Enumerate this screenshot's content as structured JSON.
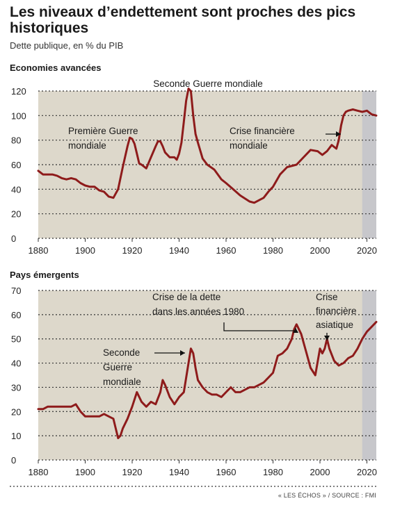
{
  "header": {
    "title": "Les niveaux d’endettement sont proches des pics historiques",
    "subtitle": "Dette publique, en % du PIB"
  },
  "footer": {
    "source": "« LES ÉCHOS » / SOURCE : FMI"
  },
  "colors": {
    "line": "#8e1b1b",
    "plot_bg": "#ddd8cb",
    "shade": "#c7c7cb"
  },
  "chart_data": [
    {
      "type": "line",
      "title": "Economies avancées",
      "xlim": [
        1880,
        2024
      ],
      "ylim": [
        0,
        120
      ],
      "xticks": [
        1880,
        1900,
        1920,
        1940,
        1960,
        1980,
        2000,
        2020
      ],
      "yticks": [
        0,
        20,
        40,
        60,
        80,
        100,
        120
      ],
      "grid": true,
      "shaded_from": 2018,
      "series": [
        {
          "x": [
            1880,
            1882,
            1884,
            1886,
            1888,
            1890,
            1892,
            1894,
            1896,
            1898,
            1900,
            1902,
            1904,
            1906,
            1908,
            1910,
            1912,
            1914,
            1916,
            1918,
            1919,
            1920,
            1921,
            1922,
            1923,
            1924,
            1926,
            1928,
            1930,
            1931,
            1932,
            1933,
            1934,
            1936,
            1938,
            1939,
            1940,
            1941,
            1942,
            1943,
            1944,
            1945,
            1946,
            1947,
            1948,
            1950,
            1952,
            1955,
            1958,
            1960,
            1963,
            1966,
            1970,
            1972,
            1974,
            1976,
            1978,
            1980,
            1983,
            1986,
            1990,
            1993,
            1996,
            1999,
            2001,
            2003,
            2005,
            2007,
            2008,
            2009,
            2010,
            2011,
            2012,
            2014,
            2016,
            2018,
            2020,
            2022,
            2024
          ],
          "y": [
            55,
            52,
            52,
            52,
            51,
            49,
            48,
            49,
            48,
            45,
            43,
            42,
            42,
            39,
            38,
            34,
            33,
            40,
            58,
            75,
            82,
            81,
            77,
            69,
            61,
            60,
            57,
            66,
            75,
            79,
            79,
            75,
            70,
            66,
            66,
            64,
            69,
            78,
            95,
            112,
            122,
            120,
            100,
            85,
            78,
            65,
            60,
            56,
            48,
            45,
            40,
            35,
            30,
            29,
            31,
            33,
            38,
            42,
            52,
            58,
            60,
            66,
            72,
            71,
            68,
            71,
            76,
            73,
            80,
            92,
            100,
            103,
            104,
            105,
            104,
            103,
            104,
            101,
            100
          ]
        }
      ],
      "annotations": [
        {
          "text": [
            "Seconde Guerre mondiale"
          ]
        },
        {
          "text": [
            "Première Guerre",
            "mondiale"
          ]
        },
        {
          "text": [
            "Crise financière",
            "mondiale"
          ]
        }
      ]
    },
    {
      "type": "line",
      "title": "Pays émergents",
      "xlim": [
        1880,
        2024
      ],
      "ylim": [
        0,
        70
      ],
      "xticks": [
        1880,
        1900,
        1920,
        1940,
        1960,
        1980,
        2000,
        2020
      ],
      "yticks": [
        0,
        10,
        20,
        30,
        40,
        50,
        60,
        70
      ],
      "grid": true,
      "shaded_from": 2018,
      "series": [
        {
          "x": [
            1880,
            1882,
            1884,
            1886,
            1888,
            1890,
            1892,
            1894,
            1896,
            1898,
            1900,
            1902,
            1904,
            1906,
            1908,
            1910,
            1912,
            1913,
            1914,
            1915,
            1916,
            1918,
            1920,
            1922,
            1924,
            1926,
            1928,
            1930,
            1932,
            1933,
            1934,
            1936,
            1938,
            1940,
            1942,
            1944,
            1945,
            1946,
            1947,
            1948,
            1950,
            1952,
            1954,
            1956,
            1958,
            1960,
            1962,
            1964,
            1966,
            1968,
            1970,
            1972,
            1974,
            1976,
            1978,
            1980,
            1982,
            1984,
            1986,
            1988,
            1989,
            1990,
            1992,
            1994,
            1996,
            1998,
            2000,
            2001,
            2002,
            2003,
            2004,
            2006,
            2008,
            2010,
            2012,
            2014,
            2016,
            2018,
            2020,
            2022,
            2024
          ],
          "y": [
            21,
            21,
            22,
            22,
            22,
            22,
            22,
            22,
            23,
            20,
            18,
            18,
            18,
            18,
            19,
            18,
            17,
            13,
            9,
            10,
            13,
            17,
            22,
            28,
            24,
            22,
            24,
            23,
            28,
            33,
            31,
            26,
            23,
            26,
            28,
            40,
            46,
            44,
            38,
            33,
            30,
            28,
            27,
            27,
            26,
            28,
            30,
            28,
            28,
            29,
            30,
            30,
            31,
            32,
            34,
            36,
            43,
            44,
            46,
            50,
            54,
            56,
            52,
            45,
            38,
            35,
            46,
            44,
            46,
            50,
            46,
            41,
            39,
            40,
            42,
            43,
            46,
            50,
            53,
            55,
            57
          ]
        }
      ],
      "annotations": [
        {
          "text": [
            "Crise de la dette",
            "dans les années 1980"
          ]
        },
        {
          "text": [
            "Crise",
            "financière",
            "asiatique"
          ]
        },
        {
          "text": [
            "Seconde",
            "Guerre",
            "mondiale"
          ]
        }
      ]
    }
  ]
}
